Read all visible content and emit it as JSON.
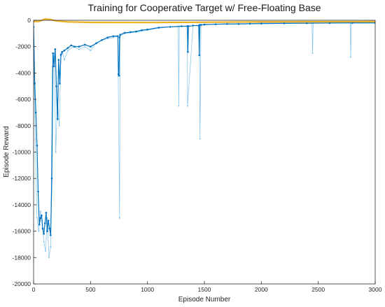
{
  "chart_data": {
    "type": "line",
    "title": "Training for Cooperative Target w/ Free-Floating Base",
    "xlabel": "Episode Number",
    "ylabel": "Episode Reward",
    "xlim": [
      0,
      3000
    ],
    "ylim": [
      -20000,
      0
    ],
    "xticks": [
      0,
      500,
      1000,
      1500,
      2000,
      2500,
      3000
    ],
    "yticks": [
      0,
      -2000,
      -4000,
      -6000,
      -8000,
      -10000,
      -12000,
      -14000,
      -16000,
      -18000,
      -20000
    ],
    "grid": false,
    "colors": {
      "episode_reward": "#0072BD",
      "episode_reward_light": "#7fc1ea",
      "average_reward": "#EDB120"
    },
    "series": [
      {
        "role": "episode_reward_raw",
        "x": [
          0,
          15,
          30,
          45,
          60,
          75,
          90,
          105,
          120,
          135,
          150,
          165,
          180,
          195,
          210,
          225,
          240,
          255,
          270,
          300,
          350,
          400,
          450,
          500,
          550,
          600,
          650,
          700,
          740,
          755,
          760,
          800,
          900,
          1000,
          1100,
          1200,
          1270,
          1275,
          1280,
          1350,
          1352,
          1400,
          1455,
          1462,
          1470,
          1500,
          1600,
          1700,
          1800,
          1900,
          2000,
          2100,
          2200,
          2300,
          2400,
          2445,
          2450,
          2455,
          2500,
          2600,
          2700,
          2780,
          2785,
          2790,
          2850,
          2900,
          3000
        ],
        "y": [
          -2500,
          -9000,
          -15000,
          -16000,
          -14500,
          -15200,
          -16800,
          -17500,
          -15000,
          -18000,
          -17200,
          -3500,
          -2500,
          -10000,
          -6000,
          -8000,
          -2700,
          -2500,
          -3000,
          -2300,
          -2000,
          -2200,
          -2000,
          -2300,
          -1700,
          -1500,
          -1400,
          -1300,
          -1200,
          -15000,
          -1200,
          -1000,
          -900,
          -750,
          -600,
          -500,
          -500,
          -6500,
          -450,
          -450,
          -6500,
          -400,
          -400,
          -9000,
          -350,
          -350,
          -300,
          -300,
          -250,
          -250,
          -200,
          -200,
          -200,
          -200,
          -200,
          -200,
          -2500,
          -200,
          -200,
          -180,
          -180,
          -180,
          -2800,
          -180,
          -150,
          -150,
          -150
        ]
      },
      {
        "role": "episode_reward_smoothed",
        "x": [
          0,
          10,
          20,
          30,
          40,
          50,
          60,
          70,
          80,
          90,
          100,
          110,
          120,
          130,
          140,
          150,
          160,
          170,
          180,
          190,
          200,
          210,
          220,
          230,
          240,
          250,
          270,
          300,
          330,
          360,
          400,
          450,
          500,
          550,
          600,
          650,
          700,
          740,
          745,
          750,
          755,
          760,
          800,
          850,
          900,
          950,
          1000,
          1100,
          1200,
          1300,
          1350,
          1355,
          1360,
          1400,
          1450,
          1455,
          1460,
          1470,
          1500,
          1600,
          1700,
          1800,
          1900,
          2000,
          2200,
          2400,
          2600,
          2800,
          3000
        ],
        "y": [
          -500,
          -4800,
          -7000,
          -9500,
          -13000,
          -15500,
          -15000,
          -14800,
          -15800,
          -16200,
          -15400,
          -14600,
          -16000,
          -15200,
          -15800,
          -16300,
          -12000,
          -2500,
          -3500,
          -2200,
          -5000,
          -7500,
          -3000,
          -4800,
          -2600,
          -2400,
          -2300,
          -2100,
          -1900,
          -2000,
          -2000,
          -1850,
          -2000,
          -1750,
          -1500,
          -1300,
          -1200,
          -1200,
          -4100,
          -4200,
          -1300,
          -1100,
          -950,
          -900,
          -850,
          -750,
          -700,
          -550,
          -500,
          -450,
          -450,
          -2400,
          -450,
          -400,
          -400,
          -2650,
          -350,
          -350,
          -320,
          -300,
          -280,
          -280,
          -260,
          -250,
          -230,
          -220,
          -210,
          -200,
          -200
        ]
      },
      {
        "role": "average_reward",
        "x": [
          0,
          50,
          100,
          150,
          200,
          300,
          500,
          1000,
          1500,
          2000,
          2500,
          3000
        ],
        "y": [
          -100,
          -80,
          100,
          50,
          -50,
          -120,
          -160,
          -170,
          -150,
          -120,
          -110,
          -100
        ]
      }
    ]
  }
}
